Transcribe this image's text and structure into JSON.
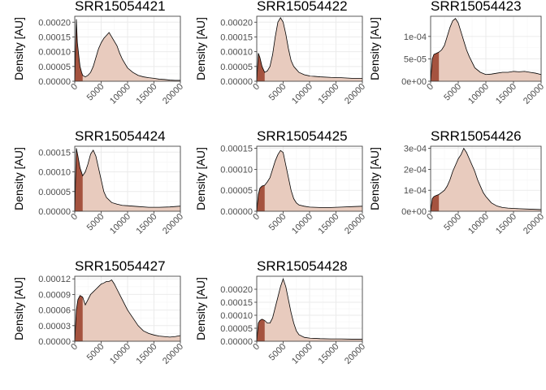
{
  "chart_data": [
    {
      "type": "area",
      "title": "SRR15054421",
      "ylabel": "Density [AU]",
      "xlim": [
        0,
        20000
      ],
      "x_ticks": [
        0,
        5000,
        10000,
        15000,
        20000
      ],
      "x_tick_labels": [
        "0",
        "5000",
        "10000",
        "15000",
        "20000"
      ],
      "ylim": [
        0,
        0.00022
      ],
      "y_ticks": [
        0,
        5e-05,
        0.0001,
        0.00015,
        0.0002
      ],
      "y_tick_labels": [
        "0.00000",
        "0.00005",
        "0.00010",
        "0.00015",
        "0.00020"
      ],
      "grid": true,
      "highlight_xmax": 1500,
      "x": [
        0,
        300,
        500,
        800,
        1000,
        1300,
        1500,
        2000,
        2500,
        3000,
        3500,
        4000,
        4500,
        5000,
        5500,
        6000,
        6500,
        7000,
        7500,
        8000,
        8500,
        9000,
        9500,
        10000,
        11000,
        12000,
        13000,
        14000,
        15000,
        16000,
        17000,
        18000,
        19000,
        20000
      ],
      "y": [
        0,
        0.00021,
        0.00013,
        8e-05,
        5e-05,
        3e-05,
        2e-05,
        1.5e-05,
        2e-05,
        3e-05,
        5e-05,
        8e-05,
        0.00011,
        0.00013,
        0.000145,
        0.000155,
        0.000165,
        0.00015,
        0.000135,
        0.00012,
        9.5e-05,
        7.5e-05,
        6e-05,
        4.5e-05,
        3e-05,
        2e-05,
        1.5e-05,
        1.2e-05,
        1e-05,
        7e-06,
        6e-06,
        4e-06,
        3e-06,
        3e-06
      ]
    },
    {
      "type": "area",
      "title": "SRR15054422",
      "ylabel": "Density [AU]",
      "xlim": [
        0,
        20000
      ],
      "x_ticks": [
        0,
        5000,
        10000,
        15000,
        20000
      ],
      "x_tick_labels": [
        "0",
        "5000",
        "10000",
        "15000",
        "20000"
      ],
      "ylim": [
        0,
        0.00022
      ],
      "y_ticks": [
        0,
        5e-05,
        0.0001,
        0.00015,
        0.0002
      ],
      "y_tick_labels": [
        "0.00000",
        "0.00005",
        "0.00010",
        "0.00015",
        "0.00020"
      ],
      "grid": true,
      "highlight_xmax": 1500,
      "x": [
        0,
        300,
        600,
        1000,
        1500,
        2000,
        2500,
        3000,
        3500,
        4000,
        4500,
        5000,
        5500,
        6000,
        6500,
        7000,
        7500,
        8000,
        9000,
        10000,
        12000,
        14000,
        16000,
        18000,
        20000
      ],
      "y": [
        0,
        9.5e-05,
        8e-05,
        5e-05,
        3e-05,
        3.5e-05,
        5e-05,
        9e-05,
        0.00015,
        0.0002,
        0.000215,
        0.0002,
        0.00016,
        0.00011,
        7e-05,
        5e-05,
        4e-05,
        3e-05,
        2.2e-05,
        1.8e-05,
        1.5e-05,
        1.3e-05,
        1.2e-05,
        1e-05,
        1e-05
      ]
    },
    {
      "type": "area",
      "title": "SRR15054423",
      "ylabel": "Density [AU]",
      "xlim": [
        0,
        20000
      ],
      "x_ticks": [
        0,
        5000,
        10000,
        15000,
        20000
      ],
      "x_tick_labels": [
        "0",
        "5000",
        "10000",
        "15000",
        "20000"
      ],
      "ylim": [
        0,
        0.000145
      ],
      "y_ticks": [
        0,
        5e-05,
        0.0001
      ],
      "y_tick_labels": [
        "0e+00",
        "5e-05",
        "1e-04"
      ],
      "grid": true,
      "highlight_xmax": 1500,
      "x": [
        0,
        300,
        600,
        1000,
        1500,
        2000,
        2500,
        3000,
        3500,
        4000,
        4500,
        5000,
        5500,
        6000,
        6500,
        7000,
        8000,
        9000,
        10000,
        11000,
        12000,
        13000,
        14000,
        15000,
        16000,
        17000,
        18000,
        19000,
        20000
      ],
      "y": [
        0,
        5e-05,
        6e-05,
        6.2e-05,
        6.5e-05,
        7e-05,
        8e-05,
        0.0001,
        0.00012,
        0.000135,
        0.00014,
        0.00013,
        0.00011,
        9e-05,
        7e-05,
        5.5e-05,
        3e-05,
        2e-05,
        1.5e-05,
        1.6e-05,
        1.8e-05,
        2e-05,
        2e-05,
        2.2e-05,
        2.1e-05,
        2.2e-05,
        2e-05,
        1.8e-05,
        1.5e-05
      ]
    },
    {
      "type": "area",
      "title": "SRR15054424",
      "ylabel": "Density [AU]",
      "xlim": [
        0,
        20000
      ],
      "x_ticks": [
        0,
        5000,
        10000,
        15000,
        20000
      ],
      "x_tick_labels": [
        "0",
        "5000",
        "10000",
        "15000",
        "20000"
      ],
      "ylim": [
        0,
        0.000165
      ],
      "y_ticks": [
        0,
        5e-05,
        0.0001,
        0.00015
      ],
      "y_tick_labels": [
        "0.00000",
        "0.00005",
        "0.00010",
        "0.00015"
      ],
      "grid": true,
      "highlight_xmax": 1500,
      "x": [
        0,
        300,
        600,
        1000,
        1500,
        2000,
        2500,
        3000,
        3500,
        4000,
        4500,
        5000,
        5500,
        6000,
        7000,
        8000,
        9000,
        10000,
        12000,
        14000,
        16000,
        18000,
        20000
      ],
      "y": [
        0,
        0.00016,
        0.00014,
        0.00011,
        9e-05,
        0.0001,
        0.00012,
        0.000145,
        0.000155,
        0.00014,
        0.00011,
        8e-05,
        5e-05,
        3.5e-05,
        2.2e-05,
        1.8e-05,
        1.5e-05,
        1.4e-05,
        1.2e-05,
        1e-05,
        1e-05,
        1.1e-05,
        1.3e-05
      ]
    },
    {
      "type": "area",
      "title": "SRR15054425",
      "ylabel": "Density [AU]",
      "xlim": [
        0,
        20000
      ],
      "x_ticks": [
        0,
        5000,
        10000,
        15000,
        20000
      ],
      "x_tick_labels": [
        "0",
        "5000",
        "10000",
        "15000",
        "20000"
      ],
      "ylim": [
        0,
        0.000155
      ],
      "y_ticks": [
        0,
        5e-05,
        0.0001,
        0.00015
      ],
      "y_tick_labels": [
        "0.00000",
        "0.00005",
        "0.00010",
        "0.00015"
      ],
      "grid": true,
      "highlight_xmax": 1500,
      "x": [
        0,
        300,
        600,
        1000,
        1500,
        2000,
        2500,
        3000,
        3500,
        4000,
        4500,
        5000,
        5500,
        6000,
        6500,
        7000,
        7500,
        8000,
        9000,
        10000,
        12000,
        14000,
        16000,
        18000,
        20000
      ],
      "y": [
        0,
        4e-05,
        5.5e-05,
        6e-05,
        6.2e-05,
        7e-05,
        8e-05,
        0.0001,
        0.00012,
        0.000135,
        0.000145,
        0.00014,
        0.00011,
        8e-05,
        5e-05,
        3e-05,
        2e-05,
        1.5e-05,
        1.2e-05,
        1e-05,
        9e-06,
        9e-06,
        1e-05,
        1.1e-05,
        1.2e-05
      ]
    },
    {
      "type": "area",
      "title": "SRR15054426",
      "ylabel": "Density [AU]",
      "xlim": [
        0,
        20000
      ],
      "x_ticks": [
        0,
        5000,
        10000,
        15000,
        20000
      ],
      "x_tick_labels": [
        "0",
        "5000",
        "10000",
        "15000",
        "20000"
      ],
      "ylim": [
        0,
        0.00031
      ],
      "y_ticks": [
        0,
        0.0001,
        0.0002,
        0.0003
      ],
      "y_tick_labels": [
        "0e+00",
        "1e-04",
        "2e-04",
        "3e-04"
      ],
      "grid": true,
      "highlight_xmax": 1500,
      "x": [
        0,
        300,
        600,
        1000,
        1500,
        2000,
        2500,
        3000,
        3500,
        4000,
        4500,
        5000,
        5500,
        6000,
        6500,
        7000,
        7500,
        8000,
        8500,
        9000,
        9500,
        10000,
        11000,
        12000,
        13000,
        14000,
        16000,
        18000,
        20000
      ],
      "y": [
        0,
        6e-05,
        7e-05,
        7.5e-05,
        8e-05,
        9e-05,
        0.0001,
        0.00012,
        0.00015,
        0.00019,
        0.00022,
        0.00025,
        0.00027,
        0.0003,
        0.00028,
        0.00025,
        0.00022,
        0.00019,
        0.00015,
        0.00012,
        9e-05,
        7e-05,
        4e-05,
        2.5e-05,
        1.8e-05,
        1.5e-05,
        1.2e-05,
        1e-05,
        8e-06
      ]
    },
    {
      "type": "area",
      "title": "SRR15054427",
      "ylabel": "Density [AU]",
      "xlim": [
        0,
        20000
      ],
      "x_ticks": [
        0,
        5000,
        10000,
        15000,
        20000
      ],
      "x_tick_labels": [
        "0",
        "5000",
        "10000",
        "15000",
        "20000"
      ],
      "ylim": [
        0,
        0.000125
      ],
      "y_ticks": [
        0,
        3e-05,
        6e-05,
        9e-05,
        0.00012
      ],
      "y_tick_labels": [
        "0.00000",
        "0.00003",
        "0.00006",
        "0.00009",
        "0.00012"
      ],
      "grid": true,
      "highlight_xmax": 1500,
      "x": [
        0,
        300,
        600,
        1000,
        1500,
        2000,
        2500,
        3000,
        3500,
        4000,
        4500,
        5000,
        5500,
        6000,
        6500,
        7000,
        7500,
        8000,
        8500,
        9000,
        10000,
        11000,
        12000,
        13000,
        14000,
        15000,
        16000,
        17000,
        18000,
        19000,
        20000
      ],
      "y": [
        0,
        6e-05,
        8e-05,
        8.8e-05,
        8.5e-05,
        7e-05,
        8e-05,
        9e-05,
        9.5e-05,
        0.0001,
        0.000105,
        0.00011,
        0.000112,
        0.000115,
        0.000115,
        0.000118,
        0.00011,
        0.0001,
        9e-05,
        8e-05,
        6e-05,
        4.5e-05,
        3e-05,
        2e-05,
        1.5e-05,
        1.2e-05,
        1e-05,
        9e-06,
        8e-06,
        9e-06,
        1.1e-05
      ]
    },
    {
      "type": "area",
      "title": "SRR15054428",
      "ylabel": "Density [AU]",
      "xlim": [
        0,
        20000
      ],
      "x_ticks": [
        0,
        5000,
        10000,
        15000,
        20000
      ],
      "x_tick_labels": [
        "0",
        "5000",
        "10000",
        "15000",
        "20000"
      ],
      "ylim": [
        0,
        0.00025
      ],
      "y_ticks": [
        0,
        5e-05,
        0.0001,
        0.00015,
        0.0002
      ],
      "y_tick_labels": [
        "0.00000",
        "0.00005",
        "0.00010",
        "0.00015",
        "0.00020"
      ],
      "grid": true,
      "highlight_xmax": 1500,
      "x": [
        0,
        300,
        600,
        1000,
        1500,
        2000,
        2500,
        3000,
        3500,
        4000,
        4500,
        5000,
        5500,
        6000,
        6500,
        7000,
        7500,
        8000,
        9000,
        10000,
        12000,
        14000,
        16000,
        18000,
        20000
      ],
      "y": [
        0,
        7e-05,
        8e-05,
        8.5e-05,
        8e-05,
        7e-05,
        7e-05,
        9e-05,
        0.00013,
        0.00017,
        0.00021,
        0.00024,
        0.00021,
        0.00016,
        0.00011,
        7e-05,
        4e-05,
        2.5e-05,
        1.5e-05,
        1.2e-05,
        1e-05,
        9e-06,
        9e-06,
        8e-06,
        8e-06
      ]
    }
  ],
  "colors": {
    "fill_main": "#e8cbbe",
    "fill_highlight": "#a5533f",
    "line": "#000000",
    "grid_major": "#ebebeb",
    "grid_minor": "#f5f5f5",
    "panel_border": "#333333",
    "tick_text": "#4d4d4d"
  }
}
